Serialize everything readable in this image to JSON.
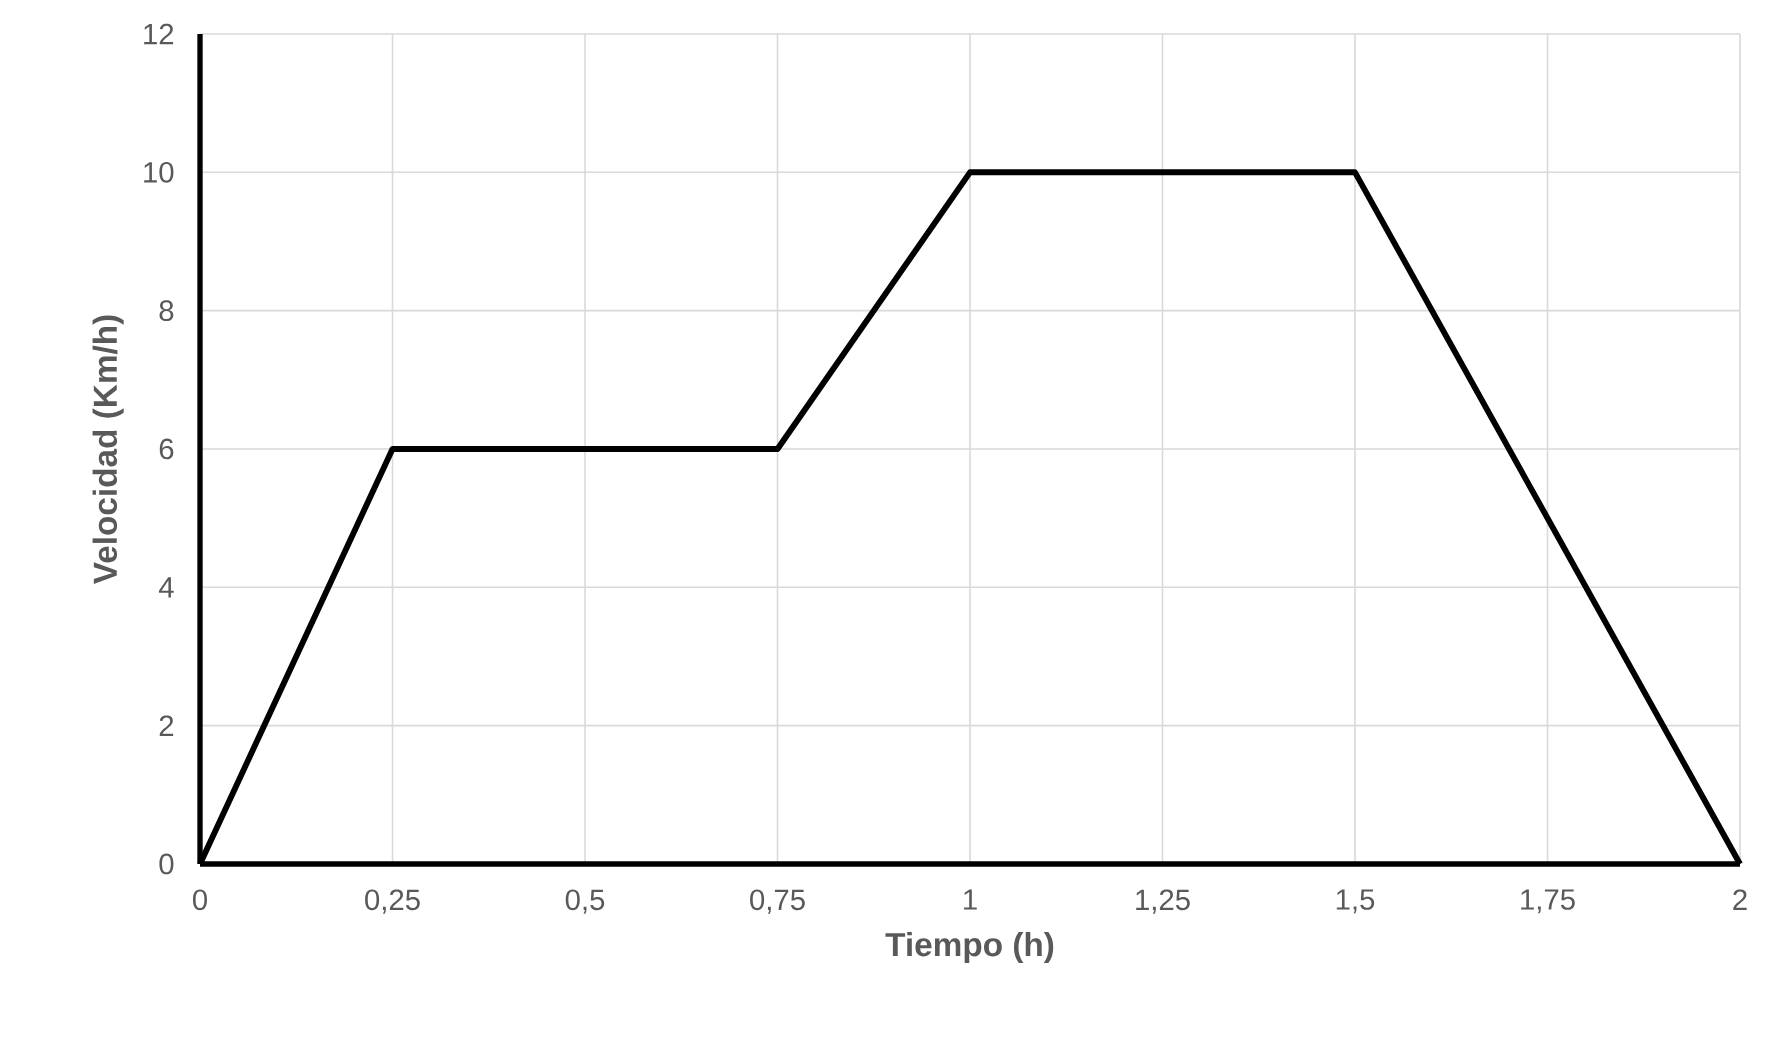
{
  "chart_data": {
    "type": "line",
    "xlabel": "Tiempo (h)",
    "ylabel": "Velocidad (Km/h)",
    "x": [
      0,
      0.25,
      0.75,
      1,
      1.5,
      2
    ],
    "series": [
      {
        "color": "#000000",
        "values": [
          0,
          6,
          6,
          10,
          10,
          0
        ]
      }
    ],
    "xlim": [
      0,
      2
    ],
    "ylim": [
      0,
      12
    ],
    "xticks": [
      0,
      {
        "value": 0.25,
        "label": "0,25"
      },
      {
        "value": 0.5,
        "label": "0,5"
      },
      {
        "value": 0.75,
        "label": "0,75"
      },
      1,
      {
        "value": 1.25,
        "label": "1,25"
      },
      {
        "value": 1.5,
        "label": "1,5"
      },
      {
        "value": 1.75,
        "label": "1,75"
      },
      2
    ],
    "yticks": [
      0,
      2,
      4,
      6,
      8,
      10,
      12
    ],
    "grid": true,
    "legend": false,
    "marker": "none",
    "line_style": "solid"
  }
}
